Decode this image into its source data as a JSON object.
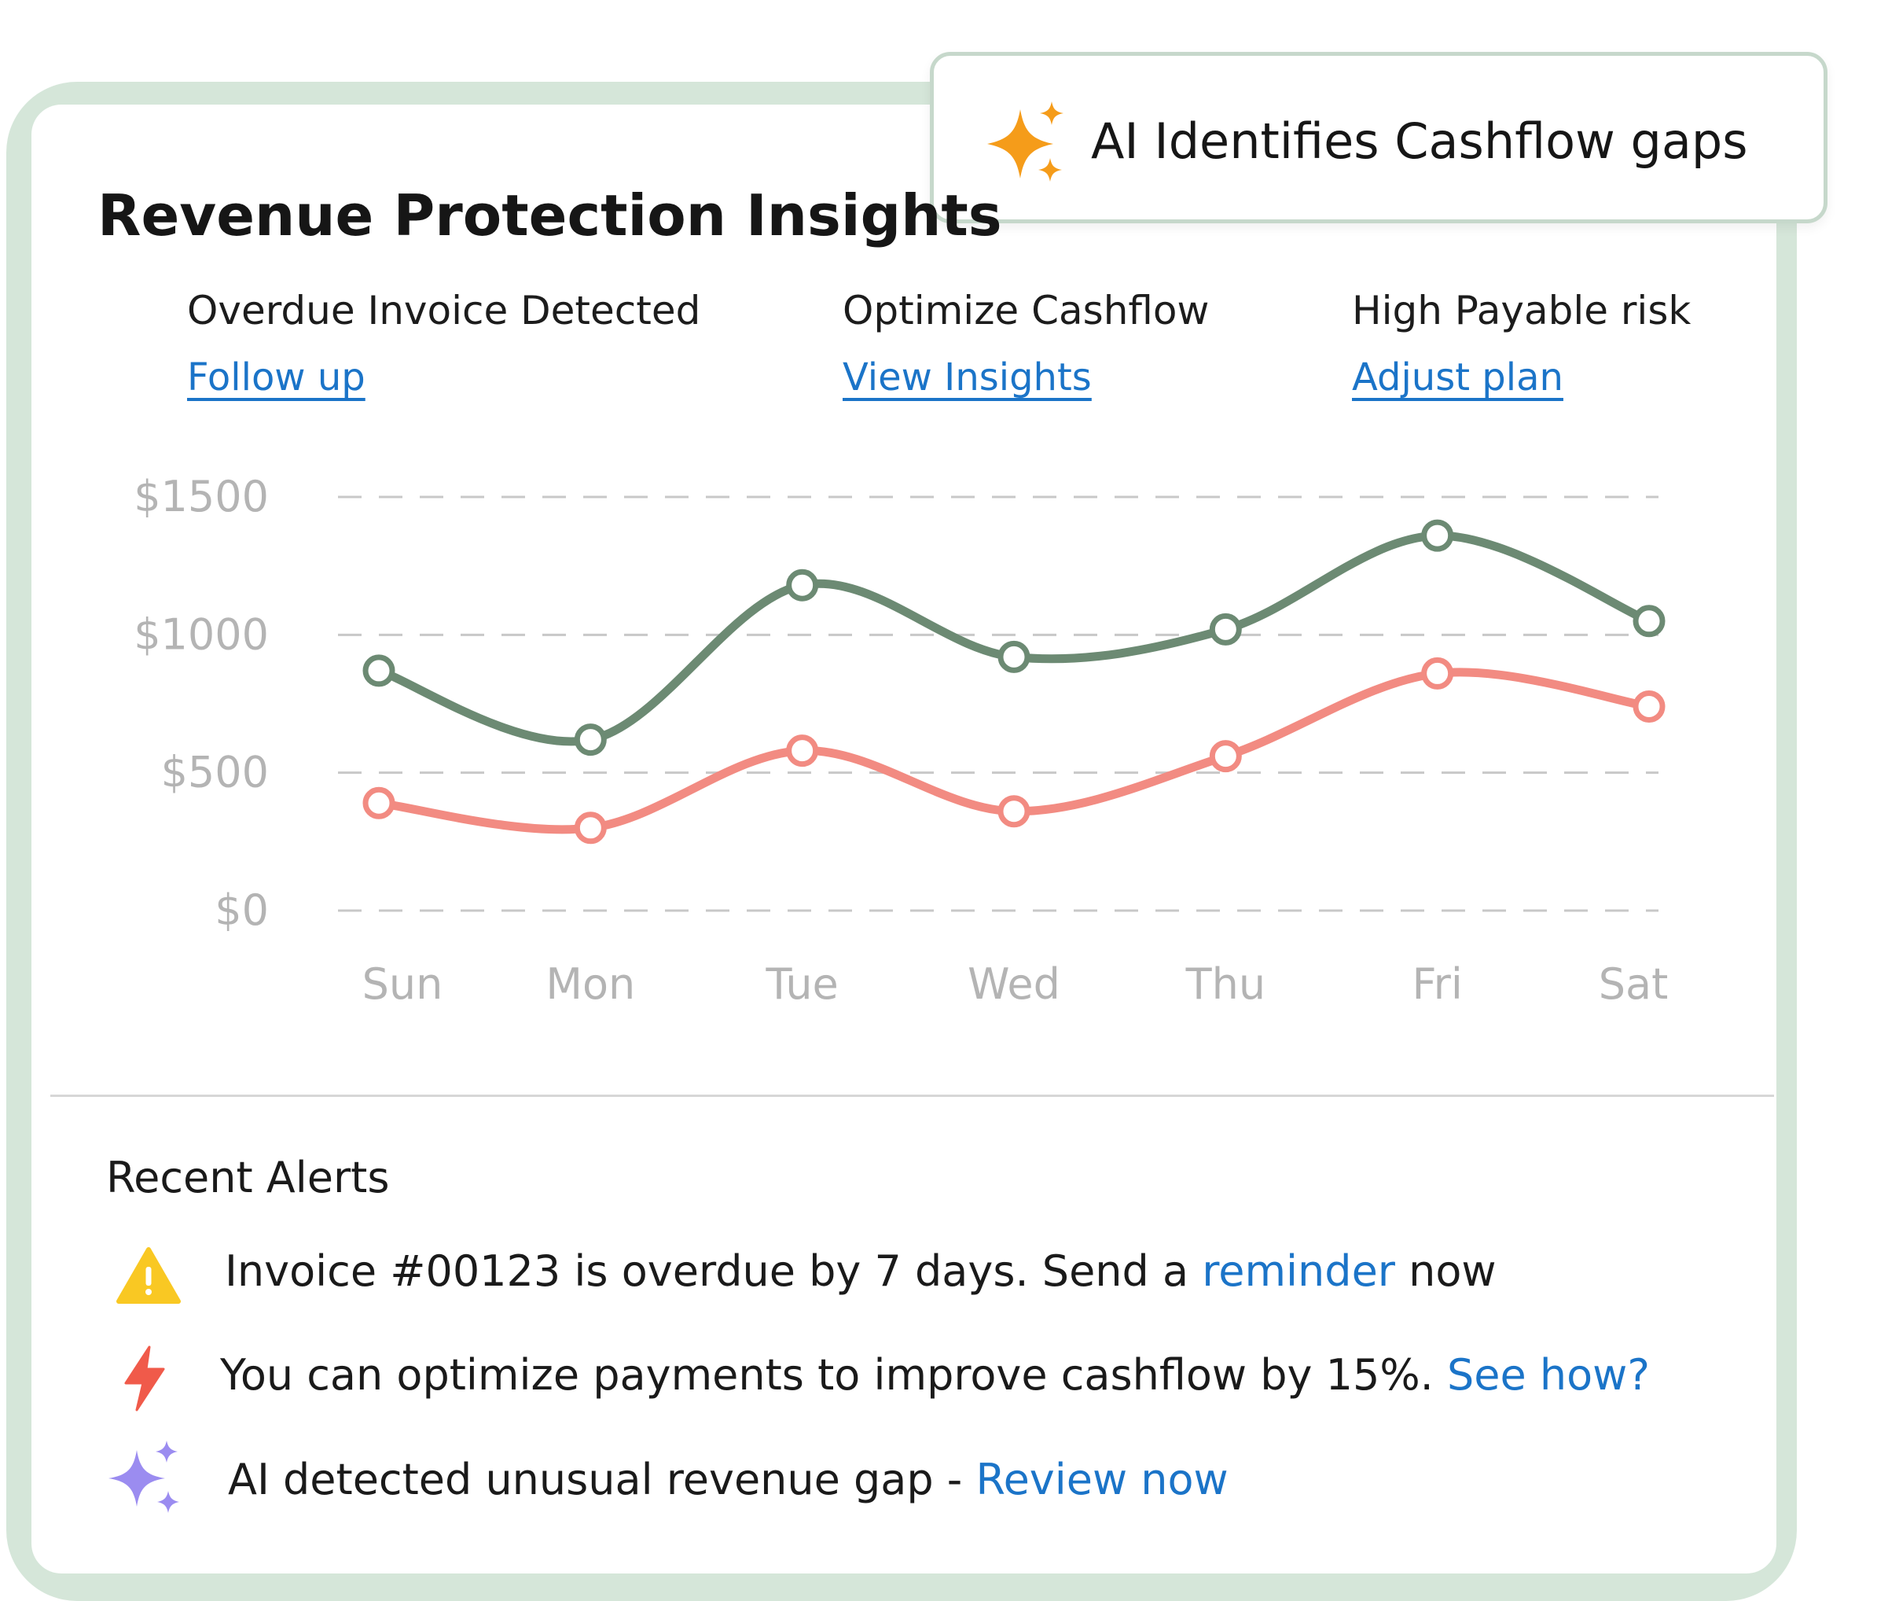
{
  "badge": {
    "text": "AI Identifies Cashflow gaps",
    "icon": "sparkle-icon",
    "color": "#f59c1a"
  },
  "title": "Revenue Protection Insights",
  "insights": [
    {
      "label": "Overdue Invoice Detected",
      "link": "Follow up"
    },
    {
      "label": "Optimize Cashflow",
      "link": "View Insights"
    },
    {
      "label": "High Payable risk",
      "link": "Adjust plan"
    }
  ],
  "chart_data": {
    "type": "line",
    "categories": [
      "Sun",
      "Mon",
      "Tue",
      "Wed",
      "Thu",
      "Fri",
      "Sat"
    ],
    "y_ticks": [
      "$0",
      "$500",
      "$1000",
      "$1500"
    ],
    "ylim": [
      0,
      1500
    ],
    "grid": true,
    "series": [
      {
        "color": "#6c8a73",
        "values": [
          870,
          620,
          1180,
          920,
          1020,
          1360,
          1050
        ]
      },
      {
        "color": "#f28b82",
        "values": [
          390,
          300,
          580,
          360,
          560,
          860,
          740
        ]
      }
    ]
  },
  "alerts": {
    "title": "Recent Alerts",
    "items": [
      {
        "icon": "warning-icon",
        "text_before": "Invoice #00123 is overdue by 7 days. Send a ",
        "link": "reminder",
        "text_after": " now"
      },
      {
        "icon": "lightning-icon",
        "text_before": "You can optimize payments to improve cashflow by 15%. ",
        "link": "See how?",
        "text_after": ""
      },
      {
        "icon": "sparkle-icon",
        "text_before": "AI detected unusual revenue gap - ",
        "link": "Review now",
        "text_after": ""
      }
    ]
  }
}
